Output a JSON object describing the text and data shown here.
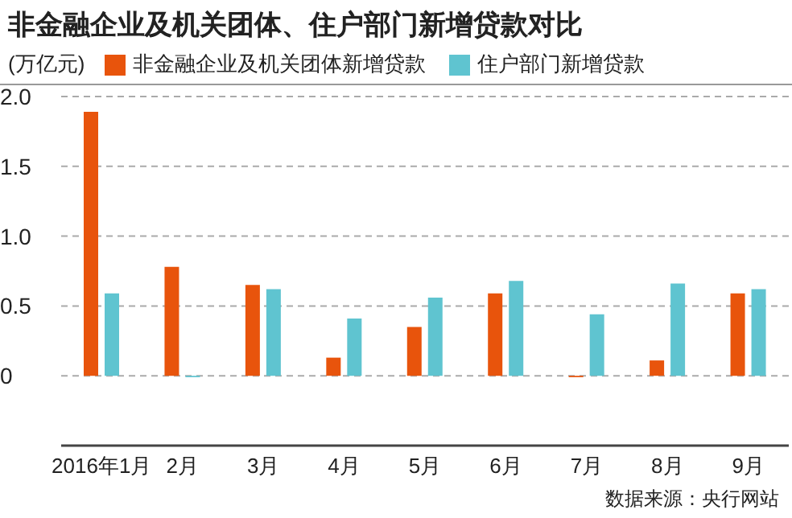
{
  "chart_data": {
    "type": "bar",
    "title": "非金融企业及机关团体、住户部门新增贷款对比",
    "ylabel": "(万亿元)",
    "categories": [
      "2016年1月",
      "2月",
      "3月",
      "4月",
      "5月",
      "6月",
      "7月",
      "8月",
      "9月"
    ],
    "series": [
      {
        "name": "非金融企业及机关团体新增贷款",
        "color": "#e8540c",
        "values": [
          1.89,
          0.78,
          0.65,
          0.13,
          0.35,
          0.59,
          -0.01,
          0.11,
          0.59
        ]
      },
      {
        "name": "住户部门新增贷款",
        "color": "#5fc4d0",
        "values": [
          0.59,
          -0.01,
          0.62,
          0.41,
          0.56,
          0.68,
          0.44,
          0.66,
          0.62
        ]
      }
    ],
    "ylim": [
      -0.5,
      2
    ],
    "yticks": [
      0,
      0.5,
      {
        "value": 1,
        "label": "1.0"
      },
      1.5,
      {
        "value": 2,
        "label": "2.0"
      }
    ],
    "grid": "y",
    "legend": "top",
    "annotations": [
      "数据来源：央行网站"
    ]
  }
}
